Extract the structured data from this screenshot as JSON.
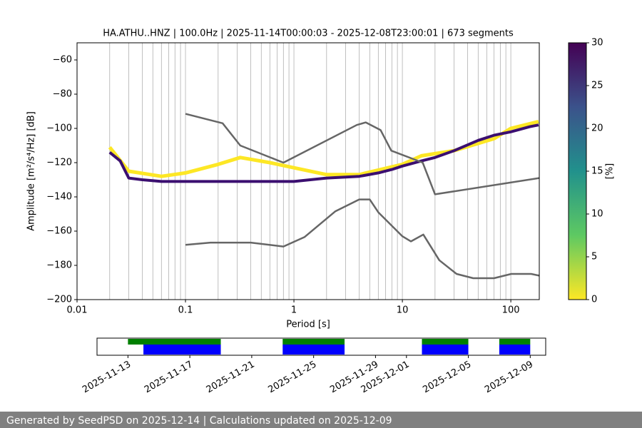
{
  "chart_data": [
    {
      "type": "line",
      "title": "HA.ATHU..HNZ | 100.0Hz | 2025-11-14T00:00:03 - 2025-12-08T23:00:01 | 673 segments",
      "x_label": "Period [s]",
      "y_label": "Amplitude [m²/s⁴/Hz] [dB]",
      "x_log": true,
      "grid": true,
      "xlim": [
        0.01,
        183
      ],
      "xticks": [
        0.01,
        0.1,
        1,
        10,
        100
      ],
      "ylim": [
        -200,
        -50
      ],
      "yticks": [
        {
          "value": -200,
          "label": "−200"
        },
        {
          "value": -180,
          "label": "−180"
        },
        {
          "value": -160,
          "label": "−160"
        },
        {
          "value": -140,
          "label": "−140"
        },
        {
          "value": -120,
          "label": "−120"
        },
        {
          "value": -100,
          "label": "−100"
        },
        {
          "value": -80,
          "label": "−80"
        },
        {
          "value": -60,
          "label": "−60"
        }
      ],
      "series": [
        {
          "color": "#fde725",
          "width": 5,
          "x": [
            0.02,
            0.03,
            0.06,
            0.1,
            0.2,
            0.32,
            0.6,
            1,
            2,
            4,
            10,
            15,
            30,
            70,
            100,
            180
          ],
          "values": [
            -111,
            -125,
            -128,
            -126,
            -121,
            -117,
            -120,
            -123,
            -127,
            -127,
            -121,
            -116,
            -113,
            -106,
            -100,
            -96
          ]
        },
        {
          "color": "#3b0f70",
          "width": 4,
          "x": [
            0.02,
            0.025,
            0.03,
            0.04,
            0.06,
            0.1,
            0.5,
            1,
            2,
            4,
            6,
            8,
            10,
            15,
            20,
            30,
            50,
            70,
            100,
            150,
            180
          ],
          "values": [
            -114,
            -119,
            -129,
            -130,
            -131,
            -131,
            -131,
            -131,
            -129,
            -128,
            -126,
            -124,
            -122,
            -119,
            -117,
            -113,
            -107,
            -104,
            -102,
            -99,
            -98
          ]
        },
        {
          "color": "#666666",
          "width": 2.5,
          "x": [
            0.1,
            0.22,
            0.32,
            0.8,
            3.8,
            4.6,
            6.3,
            7.9,
            15.4,
            20,
            183
          ],
          "values": [
            -91.5,
            -97,
            -110,
            -120,
            -98,
            -96.5,
            -101,
            -113,
            -120,
            -138.5,
            -129
          ]
        },
        {
          "color": "#666666",
          "width": 2.5,
          "x": [
            0.1,
            0.17,
            0.4,
            0.8,
            1.25,
            2.4,
            4,
            5,
            6,
            10,
            12,
            15.6,
            21.9,
            31.6,
            45,
            70,
            101,
            154,
            183
          ],
          "values": [
            -168,
            -166.7,
            -166.7,
            -169,
            -163.5,
            -148.5,
            -141.5,
            -141.5,
            -149,
            -163,
            -166,
            -162,
            -177,
            -185,
            -187.5,
            -187.5,
            -185,
            -185,
            -186
          ]
        }
      ],
      "colorbar": {
        "label": "[%]",
        "colormap": "viridis",
        "lim": [
          0,
          30
        ],
        "ticks": [
          0,
          5,
          10,
          15,
          20,
          25,
          30
        ]
      }
    },
    {
      "type": "timeline",
      "xlim": [
        "2025-11-11",
        "2025-12-10"
      ],
      "xticks": [
        "2025-11-13",
        "2025-11-17",
        "2025-11-21",
        "2025-11-25",
        "2025-11-29",
        "2025-12-01",
        "2025-12-05",
        "2025-12-09"
      ],
      "series": [
        {
          "color": "#008000",
          "start": [
            "2025-11-13",
            "2025-11-23",
            "2025-12-02",
            "2025-12-07"
          ],
          "end": [
            "2025-11-19",
            "2025-11-27",
            "2025-12-05",
            "2025-12-09"
          ]
        },
        {
          "color": "#0000ff",
          "start": [
            "2025-11-14",
            "2025-11-23",
            "2025-12-02",
            "2025-12-07"
          ],
          "end": [
            "2025-11-19",
            "2025-11-27",
            "2025-12-05",
            "2025-12-09"
          ]
        }
      ]
    }
  ],
  "footer": "Generated by SeedPSD on 2025-12-14 | Calculations updated on 2025-12-09"
}
